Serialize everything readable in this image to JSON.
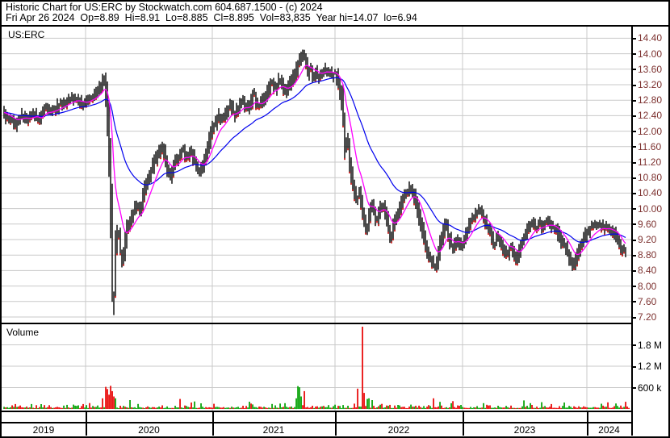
{
  "window": {
    "title_line1": "Historic Chart for US:ERC by Stockwatch.com 604.687.1500 - (c) 2024",
    "title_line2": "Fri Apr 26 2024  Op=8.89  Hi=8.91  Lo=8.885  Cl=8.895  Vol=83,835  Year hi=14.07  lo=6.94"
  },
  "price_pane": {
    "symbol_label": "US:ERC"
  },
  "volume_pane": {
    "label": "Volume"
  },
  "colors": {
    "grid": "#c9c9c9",
    "price_label": "#7d3230",
    "bars": "#000000",
    "down_tick": "#e00000",
    "vol_up": "#00a000",
    "vol_down": "#e80000",
    "ma_fast": "#ff00ff",
    "ma_slow": "#0000ee",
    "border": "#000000"
  },
  "chart_data": {
    "type": "candlestick",
    "title": "US:ERC",
    "x_axis": {
      "tick_labels": [
        "2019",
        "2020",
        "2021",
        "2022",
        "2023",
        "2024"
      ],
      "range_years": [
        2019.36,
        2024.31
      ]
    },
    "price_axis": {
      "min": 7.2,
      "max": 14.4,
      "step": 0.4,
      "grid": true
    },
    "volume_axis": {
      "ticks": [
        {
          "label": "600 k",
          "value": 600000
        },
        {
          "label": "1.2 M",
          "value": 1200000
        },
        {
          "label": "1.8 M",
          "value": 1800000
        }
      ]
    },
    "price_close_anchors": [
      [
        2019.357,
        12.45
      ],
      [
        2019.401,
        12.3
      ],
      [
        2019.452,
        12.2
      ],
      [
        2019.503,
        12.4
      ],
      [
        2019.554,
        12.3
      ],
      [
        2019.605,
        12.45
      ],
      [
        2019.643,
        12.25
      ],
      [
        2019.682,
        12.65
      ],
      [
        2019.72,
        12.5
      ],
      [
        2019.771,
        12.6
      ],
      [
        2019.822,
        12.7
      ],
      [
        2019.873,
        12.8
      ],
      [
        2019.924,
        12.85
      ],
      [
        2019.962,
        12.75
      ],
      [
        2020.0,
        12.7
      ],
      [
        2020.038,
        12.85
      ],
      [
        2020.076,
        12.95
      ],
      [
        2020.115,
        13.1
      ],
      [
        2020.146,
        13.35
      ],
      [
        2020.166,
        12.9
      ],
      [
        2020.185,
        11.8
      ],
      [
        2020.197,
        10.6
      ],
      [
        2020.21,
        9.2
      ],
      [
        2020.223,
        7.45
      ],
      [
        2020.236,
        8.6
      ],
      [
        2020.255,
        9.4
      ],
      [
        2020.274,
        9.1
      ],
      [
        2020.293,
        8.6
      ],
      [
        2020.312,
        9.0
      ],
      [
        2020.331,
        9.45
      ],
      [
        2020.357,
        9.7
      ],
      [
        2020.382,
        9.9
      ],
      [
        2020.408,
        10.05
      ],
      [
        2020.439,
        10.0
      ],
      [
        2020.471,
        10.5
      ],
      [
        2020.51,
        10.9
      ],
      [
        2020.548,
        11.2
      ],
      [
        2020.58,
        11.45
      ],
      [
        2020.611,
        11.6
      ],
      [
        2020.643,
        11.1
      ],
      [
        2020.675,
        10.85
      ],
      [
        2020.707,
        11.15
      ],
      [
        2020.739,
        11.35
      ],
      [
        2020.771,
        11.5
      ],
      [
        2020.803,
        11.3
      ],
      [
        2020.834,
        11.45
      ],
      [
        2020.866,
        11.2
      ],
      [
        2020.898,
        10.95
      ],
      [
        2020.93,
        11.1
      ],
      [
        2020.955,
        11.45
      ],
      [
        2020.981,
        11.8
      ],
      [
        2021.0,
        12.0
      ],
      [
        2021.026,
        12.2
      ],
      [
        2021.053,
        12.4
      ],
      [
        2021.086,
        12.3
      ],
      [
        2021.118,
        12.5
      ],
      [
        2021.151,
        12.65
      ],
      [
        2021.184,
        12.45
      ],
      [
        2021.217,
        12.6
      ],
      [
        2021.25,
        12.75
      ],
      [
        2021.283,
        12.6
      ],
      [
        2021.316,
        12.7
      ],
      [
        2021.342,
        13.0
      ],
      [
        2021.362,
        12.75
      ],
      [
        2021.388,
        12.6
      ],
      [
        2021.414,
        12.8
      ],
      [
        2021.441,
        12.95
      ],
      [
        2021.467,
        13.1
      ],
      [
        2021.493,
        13.25
      ],
      [
        2021.52,
        13.1
      ],
      [
        2021.546,
        13.3
      ],
      [
        2021.572,
        13.2
      ],
      [
        2021.599,
        13.0
      ],
      [
        2021.625,
        13.15
      ],
      [
        2021.651,
        13.3
      ],
      [
        2021.678,
        13.5
      ],
      [
        2021.704,
        13.7
      ],
      [
        2021.73,
        13.9
      ],
      [
        2021.75,
        14.0
      ],
      [
        2021.77,
        13.75
      ],
      [
        2021.789,
        13.5
      ],
      [
        2021.809,
        13.6
      ],
      [
        2021.829,
        13.4
      ],
      [
        2021.849,
        13.55
      ],
      [
        2021.868,
        13.35
      ],
      [
        2021.888,
        13.45
      ],
      [
        2021.908,
        13.55
      ],
      [
        2021.928,
        13.6
      ],
      [
        2021.947,
        13.5
      ],
      [
        2021.967,
        13.55
      ],
      [
        2021.987,
        13.45
      ],
      [
        2022.0,
        13.5
      ],
      [
        2022.025,
        13.3
      ],
      [
        2022.044,
        13.0
      ],
      [
        2022.063,
        12.7
      ],
      [
        2022.082,
        11.5
      ],
      [
        2022.101,
        11.7
      ],
      [
        2022.12,
        11.2
      ],
      [
        2022.139,
        10.8
      ],
      [
        2022.158,
        10.4
      ],
      [
        2022.177,
        10.2
      ],
      [
        2022.196,
        10.45
      ],
      [
        2022.215,
        10.0
      ],
      [
        2022.234,
        9.7
      ],
      [
        2022.253,
        9.45
      ],
      [
        2022.272,
        9.8
      ],
      [
        2022.291,
        10.1
      ],
      [
        2022.31,
        9.9
      ],
      [
        2022.329,
        9.7
      ],
      [
        2022.348,
        9.9
      ],
      [
        2022.373,
        10.1
      ],
      [
        2022.399,
        9.85
      ],
      [
        2022.424,
        9.5
      ],
      [
        2022.443,
        9.25
      ],
      [
        2022.468,
        9.6
      ],
      [
        2022.494,
        9.85
      ],
      [
        2022.519,
        10.1
      ],
      [
        2022.544,
        10.3
      ],
      [
        2022.57,
        10.45
      ],
      [
        2022.595,
        10.55
      ],
      [
        2022.62,
        10.35
      ],
      [
        2022.646,
        10.1
      ],
      [
        2022.671,
        9.7
      ],
      [
        2022.696,
        9.3
      ],
      [
        2022.722,
        8.95
      ],
      [
        2022.747,
        8.75
      ],
      [
        2022.772,
        8.6
      ],
      [
        2022.791,
        8.5
      ],
      [
        2022.81,
        8.8
      ],
      [
        2022.829,
        9.1
      ],
      [
        2022.854,
        9.4
      ],
      [
        2022.873,
        9.6
      ],
      [
        2022.892,
        9.3
      ],
      [
        2022.911,
        9.1
      ],
      [
        2022.93,
        8.95
      ],
      [
        2022.956,
        9.2
      ],
      [
        2022.981,
        9.1
      ],
      [
        2023.0,
        9.05
      ],
      [
        2023.026,
        9.3
      ],
      [
        2023.052,
        9.5
      ],
      [
        2023.078,
        9.7
      ],
      [
        2023.104,
        9.85
      ],
      [
        2023.13,
        9.95
      ],
      [
        2023.156,
        9.9
      ],
      [
        2023.182,
        9.7
      ],
      [
        2023.208,
        9.5
      ],
      [
        2023.234,
        9.3
      ],
      [
        2023.26,
        9.1
      ],
      [
        2023.286,
        9.25
      ],
      [
        2023.312,
        9.1
      ],
      [
        2023.338,
        8.95
      ],
      [
        2023.364,
        8.8
      ],
      [
        2023.39,
        9.0
      ],
      [
        2023.416,
        8.85
      ],
      [
        2023.442,
        8.7
      ],
      [
        2023.468,
        9.0
      ],
      [
        2023.494,
        9.25
      ],
      [
        2023.519,
        9.4
      ],
      [
        2023.545,
        9.55
      ],
      [
        2023.571,
        9.65
      ],
      [
        2023.597,
        9.5
      ],
      [
        2023.623,
        9.6
      ],
      [
        2023.649,
        9.55
      ],
      [
        2023.675,
        9.65
      ],
      [
        2023.701,
        9.6
      ],
      [
        2023.727,
        9.55
      ],
      [
        2023.753,
        9.45
      ],
      [
        2023.779,
        9.3
      ],
      [
        2023.805,
        9.15
      ],
      [
        2023.831,
        9.0
      ],
      [
        2023.857,
        8.8
      ],
      [
        2023.883,
        8.6
      ],
      [
        2023.903,
        8.55
      ],
      [
        2023.922,
        8.75
      ],
      [
        2023.942,
        8.95
      ],
      [
        2023.968,
        9.15
      ],
      [
        2023.994,
        9.3
      ],
      [
        2024.0,
        9.32
      ],
      [
        2024.019,
        9.45
      ],
      [
        2024.045,
        9.55
      ],
      [
        2024.071,
        9.5
      ],
      [
        2024.097,
        9.6
      ],
      [
        2024.123,
        9.55
      ],
      [
        2024.148,
        9.45
      ],
      [
        2024.174,
        9.5
      ],
      [
        2024.2,
        9.4
      ],
      [
        2024.226,
        9.35
      ],
      [
        2024.252,
        9.2
      ],
      [
        2024.271,
        9.0
      ],
      [
        2024.29,
        8.85
      ],
      [
        2024.31,
        8.9
      ]
    ],
    "moving_averages": [
      {
        "name": "fast-ma",
        "color": "#ff00ff"
      },
      {
        "name": "slow-ma",
        "color": "#0000ee"
      }
    ],
    "volume": {
      "base_range": [
        25000,
        145000
      ],
      "spikes": [
        [
          2020.14,
          300000,
          "r"
        ],
        [
          2020.153,
          680000,
          "r"
        ],
        [
          2020.159,
          620000,
          "r"
        ],
        [
          2020.172,
          560000,
          "r"
        ],
        [
          2020.185,
          400000,
          "r"
        ],
        [
          2020.197,
          650000,
          "r"
        ],
        [
          2020.21,
          500000,
          "r"
        ],
        [
          2020.223,
          350000,
          "r"
        ],
        [
          2020.236,
          300000,
          "g"
        ],
        [
          2020.344,
          250000,
          "g"
        ],
        [
          2020.745,
          280000,
          "r"
        ],
        [
          2020.854,
          210000,
          "g"
        ],
        [
          2021.684,
          300000,
          "g"
        ],
        [
          2021.697,
          640000,
          "g"
        ],
        [
          2021.711,
          610000,
          "g"
        ],
        [
          2021.724,
          350000,
          "g"
        ],
        [
          2021.75,
          500000,
          "r"
        ],
        [
          2022.177,
          570000,
          "r"
        ],
        [
          2022.209,
          2310000,
          "r"
        ],
        [
          2022.222,
          450000,
          "r"
        ],
        [
          2022.253,
          280000,
          "g"
        ],
        [
          2022.272,
          300000,
          "g"
        ],
        [
          2022.291,
          250000,
          "g"
        ],
        [
          2022.772,
          300000,
          "r"
        ],
        [
          2022.823,
          200000,
          "g"
        ],
        [
          2022.918,
          220000,
          "r"
        ],
        [
          2023.494,
          240000,
          "g"
        ],
        [
          2023.63,
          190000,
          "g"
        ]
      ]
    }
  }
}
